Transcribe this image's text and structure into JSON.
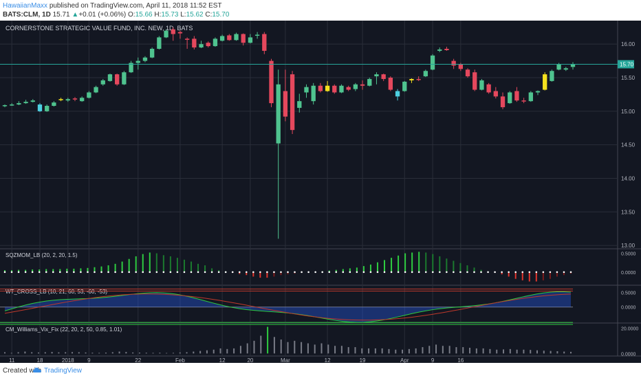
{
  "header": {
    "user": "HawaiianMaxx",
    "published": "published on TradingView.com, April 11, 2018 11:52 EST",
    "symbol": "BATS:CLM, 1D",
    "last": "15.71",
    "change": "+0.01 (+0.06%)",
    "o_label": "O:",
    "o": "15.66",
    "h_label": "H:",
    "h": "15.73",
    "l_label": "L:",
    "l": "15.62",
    "c_label": "C:",
    "c": "15.70"
  },
  "footer": {
    "created": "Created with",
    "brand": "TradingView"
  },
  "colors": {
    "bg": "#131722",
    "up": "#4fc38f",
    "down": "#e5485d",
    "grid": "#2a2e39",
    "price_line": "#26a69a"
  },
  "chart_data": {
    "type": "candlestick",
    "title": "CORNERSTONE STRATEGIC VALUE FUND, INC. NEW, 1D, BATS",
    "ylim": [
      12.95,
      16.35
    ],
    "y_ticks": [
      "16.00",
      "15.50",
      "15.00",
      "14.50",
      "14.00",
      "13.50",
      "13.00"
    ],
    "y_tick_values": [
      16.0,
      15.5,
      15.0,
      14.5,
      14.0,
      13.5,
      13.0
    ],
    "current_price": 15.7,
    "current_price_label": "15.70",
    "x_ticks": [
      {
        "label": "11",
        "i": 1
      },
      {
        "label": "18",
        "i": 5
      },
      {
        "label": "2018",
        "i": 9
      },
      {
        "label": "9",
        "i": 12
      },
      {
        "label": "22",
        "i": 19
      },
      {
        "label": "Feb",
        "i": 25
      },
      {
        "label": "12",
        "i": 31
      },
      {
        "label": "20",
        "i": 35
      },
      {
        "label": "Mar",
        "i": 40
      },
      {
        "label": "12",
        "i": 46
      },
      {
        "label": "19",
        "i": 51
      },
      {
        "label": "Apr",
        "i": 57
      },
      {
        "label": "9",
        "i": 61
      },
      {
        "label": "16",
        "i": 65
      }
    ],
    "candles": [
      {
        "o": 15.08,
        "h": 15.1,
        "l": 15.06,
        "c": 15.09
      },
      {
        "o": 15.09,
        "h": 15.12,
        "l": 15.08,
        "c": 15.1
      },
      {
        "o": 15.1,
        "h": 15.15,
        "l": 15.09,
        "c": 15.12
      },
      {
        "o": 15.12,
        "h": 15.17,
        "l": 15.11,
        "c": 15.14
      },
      {
        "o": 15.14,
        "h": 15.18,
        "l": 15.13,
        "c": 15.16
      },
      {
        "o": 15.1,
        "h": 15.12,
        "l": 14.99,
        "c": 15.0,
        "hl": "#4dd0e1"
      },
      {
        "o": 15.0,
        "h": 15.1,
        "l": 14.99,
        "c": 15.08
      },
      {
        "o": 15.08,
        "h": 15.15,
        "l": 15.07,
        "c": 15.13
      },
      {
        "o": 15.17,
        "h": 15.2,
        "l": 15.15,
        "c": 15.18,
        "hl": "#f5e11e"
      },
      {
        "o": 15.16,
        "h": 15.2,
        "l": 15.14,
        "c": 15.18
      },
      {
        "o": 15.19,
        "h": 15.21,
        "l": 15.15,
        "c": 15.18
      },
      {
        "o": 15.15,
        "h": 15.22,
        "l": 15.14,
        "c": 15.2
      },
      {
        "o": 15.2,
        "h": 15.3,
        "l": 15.19,
        "c": 15.28
      },
      {
        "o": 15.28,
        "h": 15.38,
        "l": 15.27,
        "c": 15.36
      },
      {
        "o": 15.4,
        "h": 15.48,
        "l": 15.38,
        "c": 15.46
      },
      {
        "o": 15.45,
        "h": 15.56,
        "l": 15.44,
        "c": 15.55
      },
      {
        "o": 15.55,
        "h": 15.56,
        "l": 15.38,
        "c": 15.4
      },
      {
        "o": 15.4,
        "h": 15.6,
        "l": 15.39,
        "c": 15.58
      },
      {
        "o": 15.58,
        "h": 15.75,
        "l": 15.57,
        "c": 15.72
      },
      {
        "o": 15.72,
        "h": 15.8,
        "l": 15.62,
        "c": 15.75
      },
      {
        "o": 15.75,
        "h": 15.82,
        "l": 15.73,
        "c": 15.8
      },
      {
        "o": 15.8,
        "h": 15.95,
        "l": 15.79,
        "c": 15.93
      },
      {
        "o": 15.93,
        "h": 16.12,
        "l": 15.92,
        "c": 16.1
      },
      {
        "o": 16.1,
        "h": 16.22,
        "l": 16.09,
        "c": 16.2
      },
      {
        "o": 16.22,
        "h": 16.25,
        "l": 16.05,
        "c": 16.15
      },
      {
        "o": 16.18,
        "h": 16.2,
        "l": 16.08,
        "c": 16.16
      },
      {
        "o": 16.08,
        "h": 16.1,
        "l": 15.93,
        "c": 16.07
      },
      {
        "o": 16.08,
        "h": 16.12,
        "l": 15.92,
        "c": 15.95
      },
      {
        "o": 15.95,
        "h": 16.05,
        "l": 15.94,
        "c": 16.0
      },
      {
        "o": 16.02,
        "h": 16.04,
        "l": 15.95,
        "c": 15.97
      },
      {
        "o": 15.97,
        "h": 16.1,
        "l": 15.96,
        "c": 16.08
      },
      {
        "o": 16.05,
        "h": 16.14,
        "l": 16.04,
        "c": 16.12
      },
      {
        "o": 16.13,
        "h": 16.15,
        "l": 16.05,
        "c": 16.06
      },
      {
        "o": 16.06,
        "h": 16.17,
        "l": 16.05,
        "c": 16.15
      },
      {
        "o": 16.15,
        "h": 16.16,
        "l": 15.98,
        "c": 16.02
      },
      {
        "o": 16.02,
        "h": 16.15,
        "l": 16.01,
        "c": 16.1
      },
      {
        "o": 16.13,
        "h": 16.18,
        "l": 16.08,
        "c": 16.14
      },
      {
        "o": 16.15,
        "h": 16.18,
        "l": 15.85,
        "c": 15.9
      },
      {
        "o": 15.75,
        "h": 15.78,
        "l": 15.06,
        "c": 15.12
      },
      {
        "o": 14.52,
        "h": 15.62,
        "l": 13.1,
        "c": 15.4
      },
      {
        "o": 15.3,
        "h": 15.62,
        "l": 14.85,
        "c": 14.92
      },
      {
        "o": 15.55,
        "h": 15.6,
        "l": 14.66,
        "c": 14.72
      },
      {
        "o": 15.05,
        "h": 15.26,
        "l": 14.98,
        "c": 15.15
      },
      {
        "o": 15.28,
        "h": 15.4,
        "l": 15.2,
        "c": 15.36
      },
      {
        "o": 15.15,
        "h": 15.42,
        "l": 15.1,
        "c": 15.38
      },
      {
        "o": 15.38,
        "h": 15.42,
        "l": 15.28,
        "c": 15.3
      },
      {
        "o": 15.3,
        "h": 15.45,
        "l": 15.29,
        "c": 15.38,
        "hl": "#f5e11e"
      },
      {
        "o": 15.38,
        "h": 15.4,
        "l": 15.26,
        "c": 15.28
      },
      {
        "o": 15.28,
        "h": 15.4,
        "l": 15.27,
        "c": 15.38
      },
      {
        "o": 15.36,
        "h": 15.38,
        "l": 15.3,
        "c": 15.32
      },
      {
        "o": 15.33,
        "h": 15.42,
        "l": 15.3,
        "c": 15.4
      }
    ],
    "candles_b": [
      {
        "o": 15.4,
        "h": 15.46,
        "l": 15.32,
        "c": 15.38
      },
      {
        "o": 15.38,
        "h": 15.5,
        "l": 15.37,
        "c": 15.48
      },
      {
        "o": 15.52,
        "h": 15.58,
        "l": 15.4,
        "c": 15.55
      },
      {
        "o": 15.55,
        "h": 15.56,
        "l": 15.45,
        "c": 15.48
      },
      {
        "o": 15.5,
        "h": 15.52,
        "l": 15.3,
        "c": 15.32
      },
      {
        "o": 15.3,
        "h": 15.33,
        "l": 15.16,
        "c": 15.22,
        "hl": "#4dd0e1"
      },
      {
        "o": 15.3,
        "h": 15.45,
        "l": 15.29,
        "c": 15.44
      },
      {
        "o": 15.46,
        "h": 15.49,
        "l": 15.42,
        "c": 15.48,
        "hl": "#f5e11e"
      },
      {
        "o": 15.48,
        "h": 15.52,
        "l": 15.45,
        "c": 15.47
      },
      {
        "o": 15.52,
        "h": 15.62,
        "l": 15.51,
        "c": 15.6
      },
      {
        "o": 15.62,
        "h": 15.85,
        "l": 15.61,
        "c": 15.83
      },
      {
        "o": 15.9,
        "h": 15.95,
        "l": 15.88,
        "c": 15.92
      },
      {
        "o": 15.93,
        "h": 15.96,
        "l": 15.9,
        "c": 15.91
      },
      {
        "o": 15.75,
        "h": 15.78,
        "l": 15.63,
        "c": 15.68
      },
      {
        "o": 15.7,
        "h": 15.72,
        "l": 15.6,
        "c": 15.63
      },
      {
        "o": 15.62,
        "h": 15.64,
        "l": 15.5,
        "c": 15.52
      },
      {
        "o": 15.58,
        "h": 15.62,
        "l": 15.3,
        "c": 15.32
      },
      {
        "o": 15.32,
        "h": 15.48,
        "l": 15.31,
        "c": 15.46
      },
      {
        "o": 15.4,
        "h": 15.42,
        "l": 15.26,
        "c": 15.28
      },
      {
        "o": 15.3,
        "h": 15.36,
        "l": 15.19,
        "c": 15.22
      },
      {
        "o": 15.22,
        "h": 15.28,
        "l": 15.03,
        "c": 15.06
      },
      {
        "o": 15.12,
        "h": 15.3,
        "l": 15.11,
        "c": 15.28
      },
      {
        "o": 15.3,
        "h": 15.36,
        "l": 15.14,
        "c": 15.16
      },
      {
        "o": 15.16,
        "h": 15.2,
        "l": 15.12,
        "c": 15.15
      },
      {
        "o": 15.15,
        "h": 15.3,
        "l": 15.14,
        "c": 15.28
      },
      {
        "o": 15.28,
        "h": 15.31,
        "l": 15.24,
        "c": 15.3
      },
      {
        "o": 15.32,
        "h": 15.58,
        "l": 15.31,
        "c": 15.55,
        "hl": "#f5e11e"
      },
      {
        "o": 15.45,
        "h": 15.62,
        "l": 15.44,
        "c": 15.6
      },
      {
        "o": 15.62,
        "h": 15.72,
        "l": 15.61,
        "c": 15.7
      },
      {
        "o": 15.62,
        "h": 15.66,
        "l": 15.6,
        "c": 15.64
      },
      {
        "o": 15.66,
        "h": 15.73,
        "l": 15.62,
        "c": 15.7
      }
    ],
    "panels": [
      {
        "name": "SQZMOM_LB (20, 2, 20, 1.5)",
        "ticks": [
          "0.5000",
          "0.0000"
        ],
        "tick_values": [
          0.5,
          0.0
        ],
        "ylim": [
          -0.35,
          0.62
        ]
      },
      {
        "name": "WT_CROSS_LB (10, 21, 60, 53, -60, -53)",
        "ticks": [
          "0.5000",
          "0.0000"
        ],
        "tick_values": [
          0.5,
          0.0
        ],
        "ylim": [
          -0.55,
          0.75
        ]
      },
      {
        "name": "CM_Williams_Vix_Fix (22, 20, 2, 50, 0.85, 1.01)",
        "ticks": [
          "20.0000",
          "0.0000"
        ],
        "tick_values": [
          20,
          0
        ],
        "ylim": [
          -2,
          24
        ]
      }
    ],
    "sqz_values": [
      0.05,
      0.05,
      0.06,
      0.06,
      0.07,
      0.07,
      0.08,
      0.08,
      0.08,
      0.09,
      0.09,
      0.1,
      0.11,
      0.13,
      0.15,
      0.18,
      0.22,
      0.28,
      0.35,
      0.42,
      0.48,
      0.52,
      0.5,
      0.45,
      0.42,
      0.38,
      0.33,
      0.28,
      0.22,
      0.18,
      0.1,
      0.05,
      0.02,
      -0.02,
      -0.05,
      -0.08,
      -0.12,
      -0.15,
      -0.15,
      -0.12,
      -0.08,
      -0.06,
      -0.04,
      -0.02,
      -0.01,
      0,
      0.02,
      0.04,
      0.06,
      0.08,
      0.1,
      0.12,
      0.16,
      0.2,
      0.26,
      0.32,
      0.38,
      0.44,
      0.5,
      0.52,
      0.54,
      0.52,
      0.48,
      0.42,
      0.36,
      0.3,
      0.24,
      0.18,
      0.12,
      0.06,
      0.02,
      -0.02,
      -0.06,
      -0.12,
      -0.18,
      -0.22,
      -0.25,
      -0.25,
      -0.22,
      -0.18,
      -0.12,
      -0.08,
      -0.04
    ],
    "vix_values": [
      1,
      0.5,
      1,
      1.5,
      1,
      0.8,
      1,
      1.2,
      0.9,
      1,
      1.1,
      1,
      0.8,
      0.6,
      0.5,
      0.7,
      1,
      1.5,
      1.2,
      0.8,
      0.7,
      0.6,
      0.5,
      0.6,
      0.4,
      0.5,
      0.8,
      1,
      1.5,
      2,
      2.5,
      3,
      4,
      3.5,
      4,
      6,
      8,
      10,
      14,
      21,
      13,
      11,
      9,
      10,
      9,
      8,
      7,
      8,
      7,
      6,
      6,
      5,
      5,
      4,
      4,
      4,
      4,
      3.5,
      3,
      3,
      3.5,
      4,
      5,
      6,
      7,
      6,
      6,
      5,
      5,
      4.5,
      4,
      4,
      3.5,
      3,
      3.2,
      3.5,
      3,
      3,
      2.8,
      2.5,
      2.2,
      2,
      1.8,
      1.5,
      1.3
    ]
  }
}
